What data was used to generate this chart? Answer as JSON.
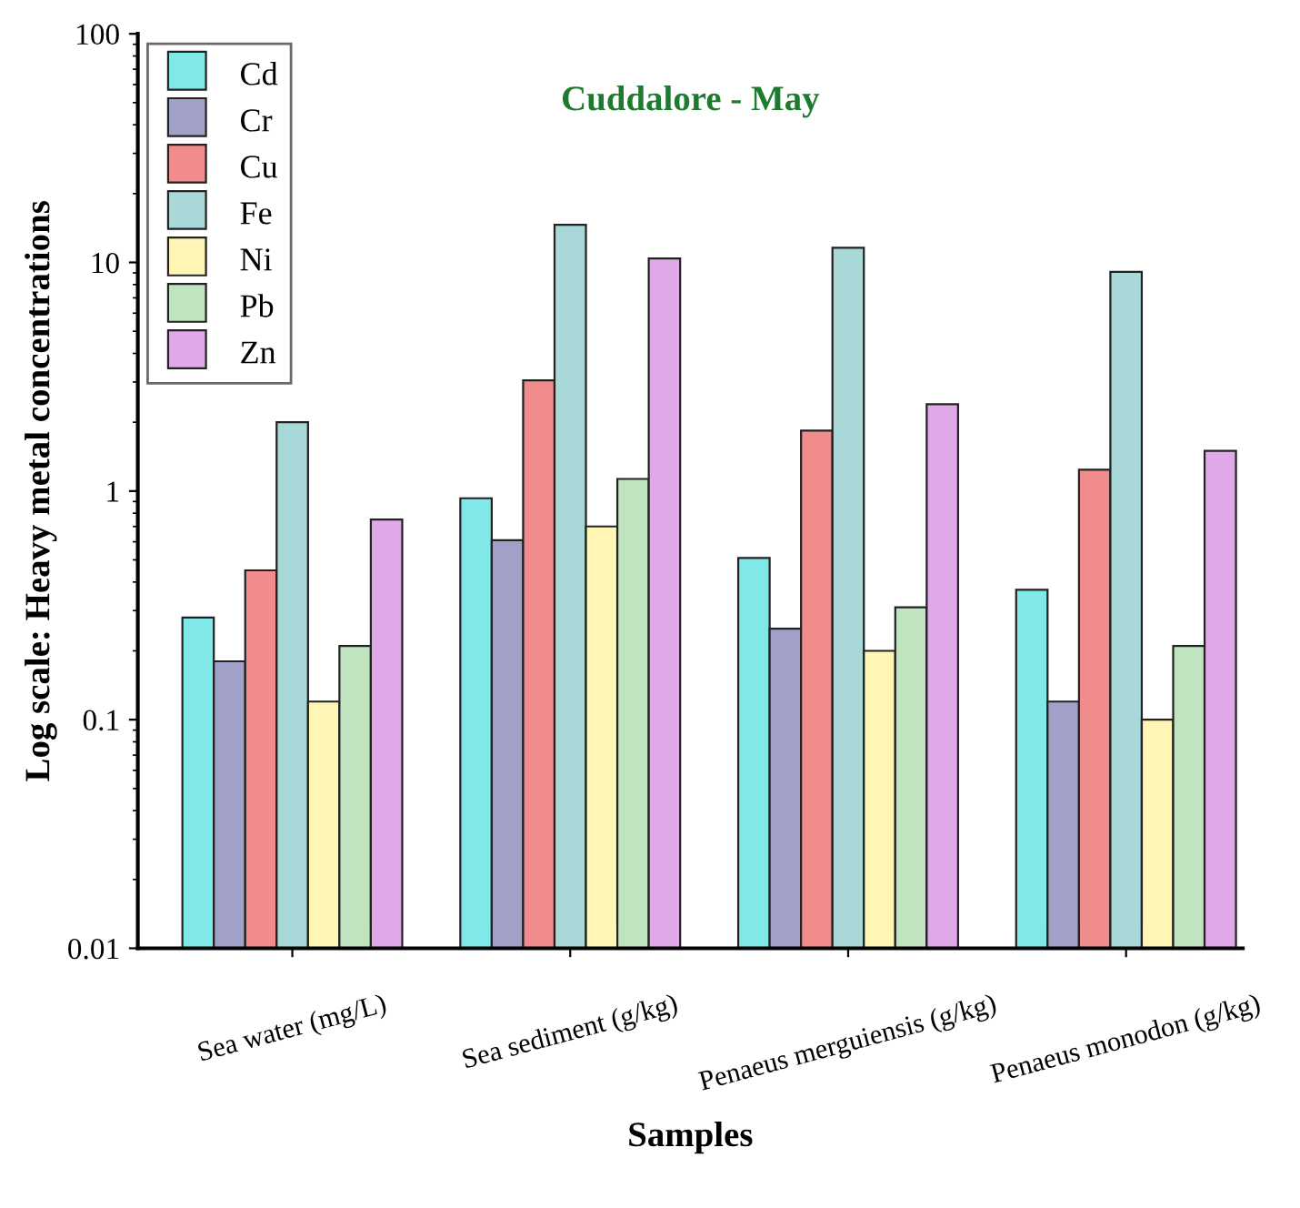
{
  "chart_data": {
    "type": "bar",
    "title": "Cuddalore - May",
    "xlabel": "Samples",
    "ylabel": "Log scale: Heavy metal concentrations",
    "categories": [
      "Sea water (mg/L)",
      "Sea sediment (g/kg)",
      "Penaeus merguiensis (g/kg)",
      "Penaeus monodon (g/kg)"
    ],
    "series": [
      {
        "name": "Cd",
        "color": "#80e8e8",
        "values": [
          0.28,
          0.93,
          0.51,
          0.37
        ]
      },
      {
        "name": "Cr",
        "color": "#a0a0c8",
        "values": [
          0.18,
          0.61,
          0.25,
          0.12
        ]
      },
      {
        "name": "Cu",
        "color": "#f08c8c",
        "values": [
          0.45,
          3.05,
          1.84,
          1.24
        ]
      },
      {
        "name": "Fe",
        "color": "#a8d8d8",
        "values": [
          2.0,
          14.6,
          11.6,
          9.1
        ]
      },
      {
        "name": "Ni",
        "color": "#fff5b4",
        "values": [
          0.12,
          0.7,
          0.2,
          0.1
        ]
      },
      {
        "name": "Pb",
        "color": "#c0e4c0",
        "values": [
          0.21,
          1.13,
          0.31,
          0.21
        ]
      },
      {
        "name": "Zn",
        "color": "#e0a8e8",
        "values": [
          0.75,
          10.4,
          2.4,
          1.5
        ]
      }
    ],
    "log": "y",
    "ylim": [
      0.01,
      100
    ],
    "yticks": [
      0.01,
      0.1,
      1,
      10,
      100
    ],
    "legend": "top left",
    "grid": false
  }
}
